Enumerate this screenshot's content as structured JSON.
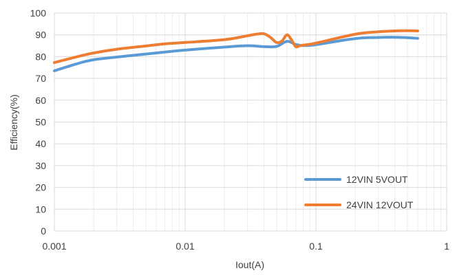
{
  "chart_data": {
    "type": "line",
    "title": "",
    "xlabel": "Iout(A)",
    "ylabel": "Efficiency(%)",
    "x_scale": "log",
    "xlim": [
      0.001,
      1
    ],
    "ylim": [
      0,
      100
    ],
    "x_ticks": [
      {
        "value": 0.001,
        "label": "0.001"
      },
      {
        "value": 0.01,
        "label": "0.01"
      },
      {
        "value": 0.1,
        "label": "0.1"
      },
      {
        "value": 1,
        "label": "1"
      }
    ],
    "y_ticks": [
      0,
      10,
      20,
      30,
      40,
      50,
      60,
      70,
      80,
      90,
      100
    ],
    "grid": true,
    "legend_position": "bottom-right",
    "series": [
      {
        "name": "12VIN 5VOUT",
        "color": "#5b9bd5",
        "x": [
          0.001,
          0.0015,
          0.002,
          0.003,
          0.005,
          0.007,
          0.01,
          0.02,
          0.03,
          0.04,
          0.05,
          0.06,
          0.07,
          0.08,
          0.1,
          0.2,
          0.3,
          0.4,
          0.5,
          0.6
        ],
        "y": [
          73.5,
          76.8,
          78.6,
          79.8,
          81.2,
          82.1,
          83.0,
          84.4,
          85.0,
          84.6,
          84.7,
          87.0,
          85.6,
          85.1,
          85.5,
          88.3,
          88.8,
          88.9,
          88.7,
          88.4
        ]
      },
      {
        "name": "24VIN 12VOUT",
        "color": "#ed7d31",
        "x": [
          0.001,
          0.0015,
          0.002,
          0.003,
          0.005,
          0.007,
          0.01,
          0.02,
          0.03,
          0.035,
          0.04,
          0.045,
          0.05,
          0.055,
          0.06,
          0.065,
          0.07,
          0.075,
          0.08,
          0.1,
          0.2,
          0.3,
          0.4,
          0.5,
          0.6
        ],
        "y": [
          77.3,
          80.0,
          81.7,
          83.4,
          84.9,
          85.9,
          86.5,
          87.8,
          89.6,
          90.3,
          90.5,
          88.8,
          86.5,
          87.2,
          90.0,
          87.7,
          84.6,
          85.0,
          85.3,
          86.2,
          90.3,
          91.4,
          91.8,
          91.9,
          91.8
        ]
      }
    ]
  }
}
